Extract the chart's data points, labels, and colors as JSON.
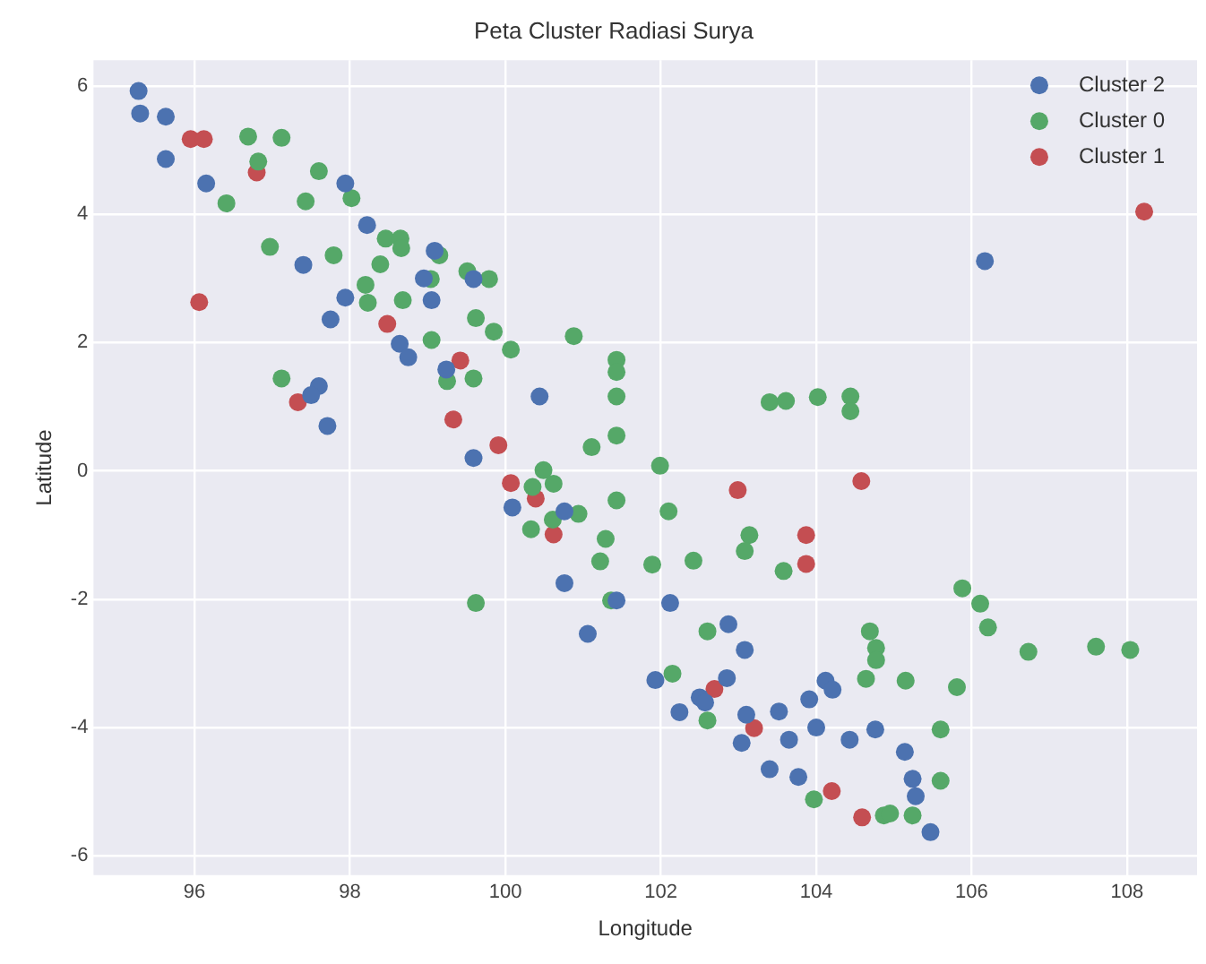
{
  "chart_data": {
    "type": "scatter",
    "title": "Peta Cluster Radiasi Surya",
    "xlabel": "Longitude",
    "ylabel": "Latitude",
    "xlim": [
      94.7,
      108.9
    ],
    "xticks": [
      96,
      98,
      100,
      102,
      104,
      106,
      108
    ],
    "ylim": [
      -6.3,
      6.4
    ],
    "yticks": [
      -6,
      -4,
      -2,
      0,
      2,
      4,
      6
    ],
    "grid": true,
    "legend": "top right",
    "marker": "circle",
    "series": [
      {
        "name": "Cluster 2",
        "color": "#4c72b0",
        "x": [
          95.28,
          95.3,
          95.63,
          95.63,
          96.15,
          97.94,
          98.22,
          97.4,
          99.09,
          98.95,
          99.59,
          97.94,
          99.05,
          97.75,
          98.64,
          98.75,
          99.24,
          97.6,
          97.5,
          100.44,
          97.71,
          99.59,
          100.09,
          100.76,
          100.76,
          101.43,
          101.06,
          102.12,
          102.87,
          103.08,
          102.85,
          101.93,
          102.5,
          102.57,
          102.24,
          103.1,
          103.04,
          103.52,
          103.65,
          103.91,
          104.0,
          104.12,
          104.21,
          103.4,
          103.77,
          104.43,
          104.76,
          105.14,
          105.24,
          105.28,
          105.47,
          106.17
        ],
        "values": [
          5.92,
          5.57,
          5.52,
          4.86,
          4.48,
          4.48,
          3.83,
          3.21,
          3.43,
          3.0,
          2.99,
          2.7,
          2.66,
          2.36,
          1.98,
          1.77,
          1.58,
          1.32,
          1.18,
          1.16,
          0.7,
          0.2,
          -0.57,
          -0.63,
          -1.75,
          -2.02,
          -2.54,
          -2.06,
          -2.39,
          -2.79,
          -3.23,
          -3.26,
          -3.53,
          -3.61,
          -3.76,
          -3.8,
          -4.24,
          -3.75,
          -4.19,
          -3.56,
          -4.0,
          -3.27,
          -3.41,
          -4.65,
          -4.77,
          -4.19,
          -4.03,
          -4.38,
          -4.8,
          -5.07,
          -5.63,
          3.27
        ]
      },
      {
        "name": "Cluster 0",
        "color": "#55a868",
        "x": [
          96.69,
          97.12,
          96.82,
          97.6,
          96.41,
          97.43,
          98.02,
          96.97,
          97.79,
          98.46,
          98.65,
          98.66,
          99.15,
          98.39,
          99.04,
          99.51,
          99.79,
          98.2,
          98.23,
          98.68,
          99.62,
          99.85,
          100.07,
          100.88,
          99.05,
          101.43,
          101.43,
          101.43,
          99.25,
          99.59,
          97.12,
          101.43,
          101.11,
          100.49,
          100.35,
          100.62,
          100.61,
          100.33,
          100.94,
          101.43,
          101.29,
          101.22,
          101.36,
          99.62,
          101.99,
          102.1,
          101.89,
          102.42,
          103.14,
          103.08,
          103.58,
          102.6,
          102.15,
          102.6,
          104.69,
          104.77,
          104.77,
          104.64,
          105.15,
          105.88,
          106.11,
          106.21,
          106.73,
          107.6,
          108.04,
          105.81,
          105.6,
          105.6,
          103.97,
          104.87,
          104.95,
          105.24,
          103.4,
          103.61,
          104.02,
          104.44,
          104.44
        ],
        "values": [
          5.21,
          5.19,
          4.82,
          4.67,
          4.17,
          4.2,
          4.25,
          3.49,
          3.36,
          3.62,
          3.62,
          3.47,
          3.36,
          3.22,
          2.99,
          3.11,
          2.99,
          2.9,
          2.62,
          2.66,
          2.38,
          2.17,
          1.89,
          2.1,
          2.04,
          1.73,
          1.54,
          1.16,
          1.4,
          1.44,
          1.44,
          0.55,
          0.37,
          0.01,
          -0.25,
          -0.2,
          -0.76,
          -0.91,
          -0.67,
          -0.46,
          -1.06,
          -1.41,
          -2.02,
          -2.06,
          0.08,
          -0.63,
          -1.46,
          -1.4,
          -1.0,
          -1.25,
          -1.56,
          -2.5,
          -3.16,
          -3.89,
          -2.5,
          -2.76,
          -2.95,
          -3.24,
          -3.27,
          -1.83,
          -2.07,
          -2.44,
          -2.82,
          -2.74,
          -2.79,
          -3.37,
          -4.03,
          -4.83,
          -5.12,
          -5.37,
          -5.34,
          -5.37,
          1.07,
          1.09,
          1.15,
          1.16,
          0.93
        ]
      },
      {
        "name": "Cluster 1",
        "color": "#c44e52",
        "x": [
          95.95,
          96.12,
          96.8,
          96.06,
          98.48,
          99.42,
          97.33,
          99.33,
          99.91,
          100.07,
          100.39,
          100.62,
          102.99,
          104.58,
          103.87,
          103.87,
          102.69,
          103.2,
          104.2,
          104.59,
          108.22
        ],
        "values": [
          5.17,
          5.17,
          4.65,
          2.63,
          2.29,
          1.72,
          1.07,
          0.8,
          0.4,
          -0.19,
          -0.43,
          -0.99,
          -0.3,
          -0.16,
          -1.0,
          -1.45,
          -3.4,
          -4.01,
          -4.99,
          -5.4,
          4.04
        ]
      }
    ]
  }
}
